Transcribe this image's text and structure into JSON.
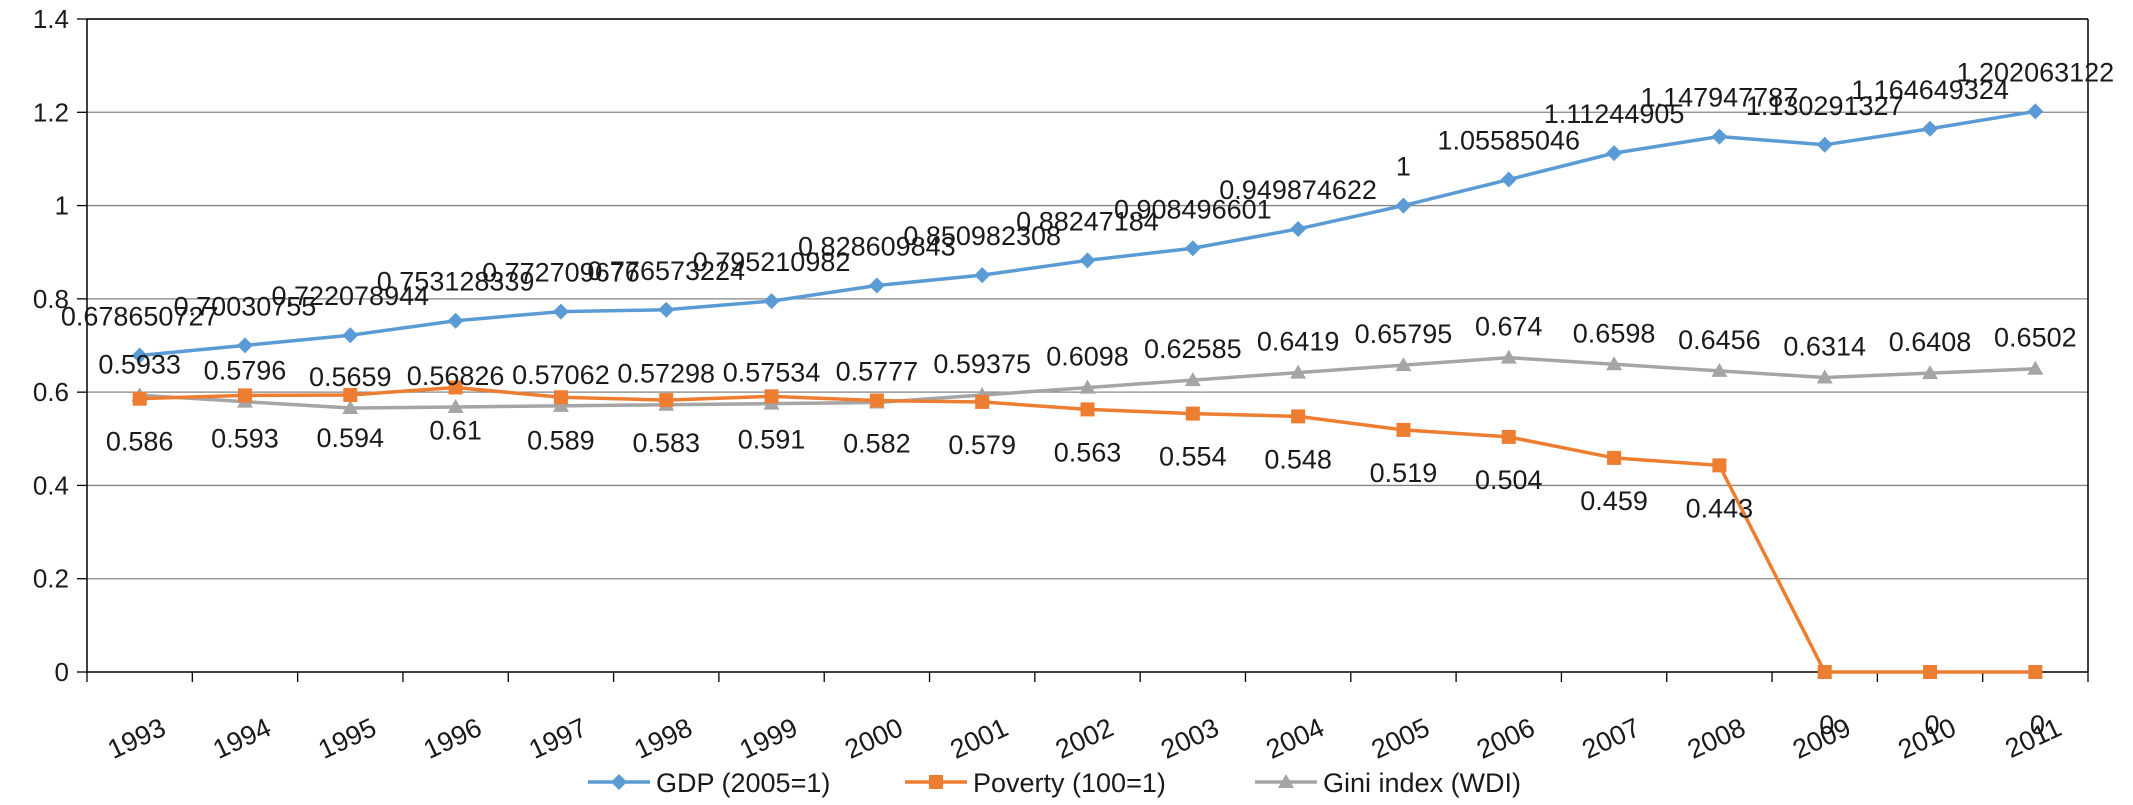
{
  "chart_data": {
    "type": "line",
    "categories": [
      "1993",
      "1994",
      "1995",
      "1996",
      "1997",
      "1998",
      "1999",
      "2000",
      "2001",
      "2002",
      "2003",
      "2004",
      "2005",
      "2006",
      "2007",
      "2008",
      "2009",
      "2010",
      "2011"
    ],
    "ylim": [
      0,
      1.4
    ],
    "yticks": [
      "0",
      "0.2",
      "0.4",
      "0.6",
      "0.8",
      "1",
      "1.2",
      "1.4"
    ],
    "grid": true,
    "legend_position": "bottom",
    "series": [
      {
        "name": "GDP (2005=1)",
        "color": "#5b9bd5",
        "marker": "diamond",
        "values": [
          0.678650727,
          0.70030755,
          0.722078944,
          0.753128339,
          0.772709676,
          0.776573224,
          0.795210982,
          0.828609843,
          0.850982308,
          0.88247184,
          0.908496601,
          0.949874622,
          1,
          1.05585046,
          1.11244905,
          1.147947787,
          1.130291327,
          1.164649324,
          1.202063122
        ],
        "labels": [
          "0.678650727",
          "0.70030755",
          "0.722078944",
          "0.753128339",
          "0.772709676",
          "0.776573224",
          "0.795210982",
          "0.828609843",
          "0.850982308",
          "0.88247184",
          "0.908496601",
          "0.949874622",
          "1",
          "1.05585046",
          "1.11244905",
          "1.147947787",
          "1.130291327",
          "1.164649324",
          "1.202063122"
        ]
      },
      {
        "name": "Poverty (100=1)",
        "color": "#ed7d31",
        "marker": "square",
        "values": [
          0.586,
          0.593,
          0.594,
          0.61,
          0.589,
          0.583,
          0.591,
          0.582,
          0.579,
          0.563,
          0.554,
          0.548,
          0.519,
          0.504,
          0.459,
          0.443,
          0,
          0,
          0
        ],
        "labels": [
          "0.586",
          "0.593",
          "0.594",
          "0.61",
          "0.589",
          "0.583",
          "0.591",
          "0.582",
          "0.579",
          "0.563",
          "0.554",
          "0.548",
          "0.519",
          "0.504",
          "0.459",
          "0.443",
          "0",
          "0",
          "0"
        ]
      },
      {
        "name": "Gini index (WDI)",
        "color": "#a5a5a5",
        "marker": "triangle",
        "values": [
          0.5933,
          0.5796,
          0.5659,
          0.56826,
          0.57062,
          0.57298,
          0.57534,
          0.5777,
          0.59375,
          0.6098,
          0.62585,
          0.6419,
          0.65795,
          0.674,
          0.6598,
          0.6456,
          0.6314,
          0.6408,
          0.6502
        ],
        "labels": [
          "0.5933",
          "0.5796",
          "0.5659",
          "0.56826",
          "0.57062",
          "0.57298",
          "0.57534",
          "0.5777",
          "0.59375",
          "0.6098",
          "0.62585",
          "0.6419",
          "0.65795",
          "0.674",
          "0.6598",
          "0.6456",
          "0.6314",
          "0.6408",
          "0.6502"
        ]
      }
    ]
  }
}
